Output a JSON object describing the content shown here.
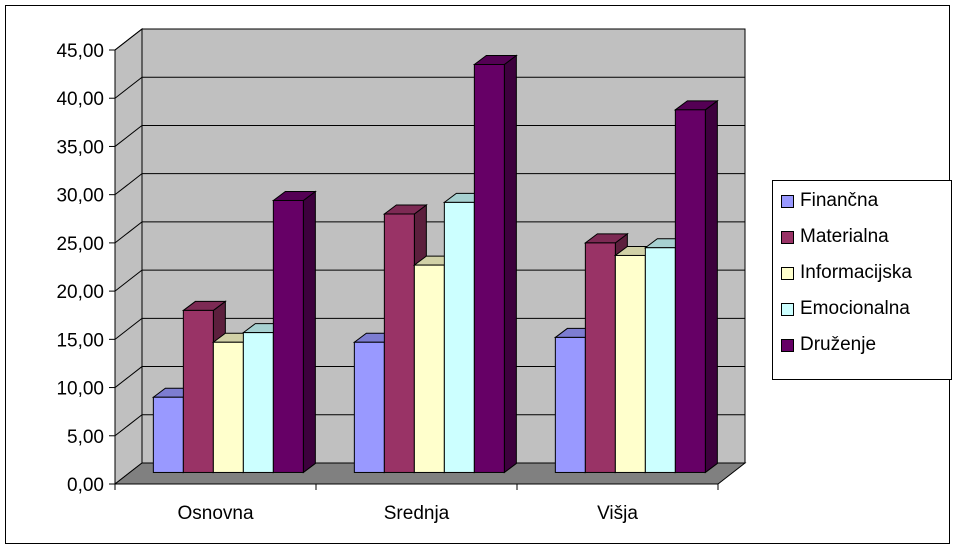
{
  "chart_data": {
    "type": "bar",
    "style": "3d-clustered-column",
    "title": "",
    "xlabel": "",
    "ylabel": "",
    "ylim": [
      0,
      45
    ],
    "ytick_step": 5,
    "ytick_labels": [
      "0,00",
      "5,00",
      "10,00",
      "15,00",
      "20,00",
      "25,00",
      "30,00",
      "35,00",
      "40,00",
      "45,00"
    ],
    "categories": [
      "Osnovna",
      "Srednja",
      "Višja"
    ],
    "series": [
      {
        "name": "Finančna",
        "color": "#9999FF",
        "values": [
          7.8,
          13.5,
          14.0
        ]
      },
      {
        "name": "Materialna",
        "color": "#993366",
        "values": [
          16.8,
          26.8,
          23.8
        ]
      },
      {
        "name": "Informacijska",
        "color": "#FFFFCC",
        "values": [
          13.5,
          21.5,
          22.5
        ]
      },
      {
        "name": "Emocionalna",
        "color": "#CCFFFF",
        "values": [
          14.5,
          28.0,
          23.3
        ]
      },
      {
        "name": "Druženje",
        "color": "#660066",
        "values": [
          28.2,
          42.3,
          37.6
        ]
      }
    ],
    "grid": true,
    "wall_color": "#C0C0C0",
    "legend_position": "right"
  }
}
